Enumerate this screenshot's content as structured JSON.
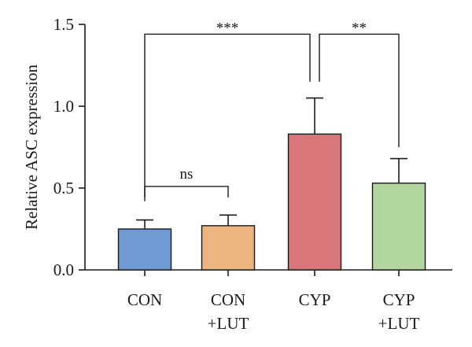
{
  "chart_data": {
    "type": "bar",
    "ylabel": "Relative ASC expression",
    "xlabel": "",
    "ylim": [
      0,
      1.5
    ],
    "yticks": [
      "0.0",
      "0.5",
      "1.0",
      "1.5"
    ],
    "categories": [
      {
        "line1": "CON",
        "line2": ""
      },
      {
        "line1": "CON",
        "line2": "+LUT"
      },
      {
        "line1": "CYP",
        "line2": ""
      },
      {
        "line1": "CYP",
        "line2": "+LUT"
      }
    ],
    "values": [
      0.25,
      0.27,
      0.83,
      0.53
    ],
    "errors": [
      0.055,
      0.065,
      0.22,
      0.15
    ],
    "colors": [
      "#6f9ad2",
      "#ecb47e",
      "#d8767a",
      "#b3d6a1"
    ],
    "significance": [
      {
        "from": 0,
        "to": 1,
        "label": "ns"
      },
      {
        "from": 0,
        "to": 2,
        "label": "***"
      },
      {
        "from": 2,
        "to": 3,
        "label": "**"
      }
    ],
    "grid": false,
    "legend": "none"
  }
}
